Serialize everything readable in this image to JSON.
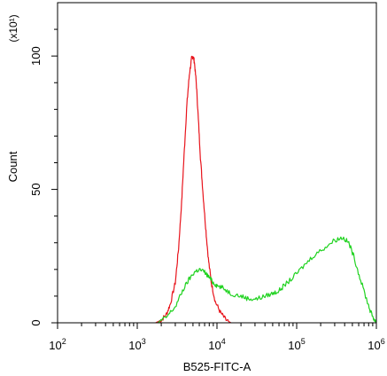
{
  "chart_data": {
    "type": "line",
    "title": "",
    "xlabel": "B525-FITC-A",
    "ylabel": "Count",
    "y_multiplier_label": "(x10¹)",
    "x_scale": "log",
    "xlim": [
      100,
      1000000
    ],
    "ylim": [
      0,
      120
    ],
    "x_ticks": [
      {
        "value": 100,
        "base": "10",
        "exp": "2"
      },
      {
        "value": 1000,
        "base": "10",
        "exp": "3"
      },
      {
        "value": 10000,
        "base": "10",
        "exp": "4"
      },
      {
        "value": 100000,
        "base": "10",
        "exp": "5"
      },
      {
        "value": 1000000,
        "base": "10",
        "exp": "6"
      }
    ],
    "y_ticks": [
      {
        "value": 0,
        "label": "0"
      },
      {
        "value": 50,
        "label": "50"
      },
      {
        "value": 100,
        "label": "100"
      }
    ],
    "grid": false,
    "legend": "none",
    "series": [
      {
        "color": "#e8141c",
        "points": [
          [
            1700,
            0
          ],
          [
            2000,
            1
          ],
          [
            2300,
            3
          ],
          [
            2600,
            7
          ],
          [
            3000,
            15
          ],
          [
            3300,
            28
          ],
          [
            3600,
            45
          ],
          [
            3900,
            65
          ],
          [
            4200,
            82
          ],
          [
            4500,
            93
          ],
          [
            4800,
            99
          ],
          [
            5000,
            100
          ],
          [
            5200,
            98
          ],
          [
            5500,
            90
          ],
          [
            5800,
            78
          ],
          [
            6200,
            62
          ],
          [
            6700,
            48
          ],
          [
            7200,
            36
          ],
          [
            7800,
            24
          ],
          [
            8500,
            15
          ],
          [
            9500,
            8
          ],
          [
            11000,
            4
          ],
          [
            13000,
            1
          ],
          [
            15000,
            0
          ]
        ]
      },
      {
        "color": "#1fd21f",
        "points": [
          [
            1800,
            0
          ],
          [
            2300,
            2
          ],
          [
            3000,
            6
          ],
          [
            3700,
            12
          ],
          [
            4400,
            16
          ],
          [
            5200,
            19
          ],
          [
            6000,
            20
          ],
          [
            7000,
            19
          ],
          [
            8000,
            17
          ],
          [
            9000,
            15
          ],
          [
            10000,
            14
          ],
          [
            12000,
            13
          ],
          [
            15000,
            11
          ],
          [
            20000,
            10
          ],
          [
            25000,
            9
          ],
          [
            32000,
            9
          ],
          [
            40000,
            10
          ],
          [
            50000,
            11
          ],
          [
            60000,
            12
          ],
          [
            70000,
            14
          ],
          [
            90000,
            17
          ],
          [
            120000,
            21
          ],
          [
            160000,
            25
          ],
          [
            220000,
            28
          ],
          [
            300000,
            31
          ],
          [
            380000,
            32
          ],
          [
            450000,
            30
          ],
          [
            520000,
            25
          ],
          [
            620000,
            17
          ],
          [
            750000,
            9
          ],
          [
            850000,
            4
          ],
          [
            950000,
            1
          ],
          [
            1000000,
            0
          ]
        ]
      }
    ]
  }
}
